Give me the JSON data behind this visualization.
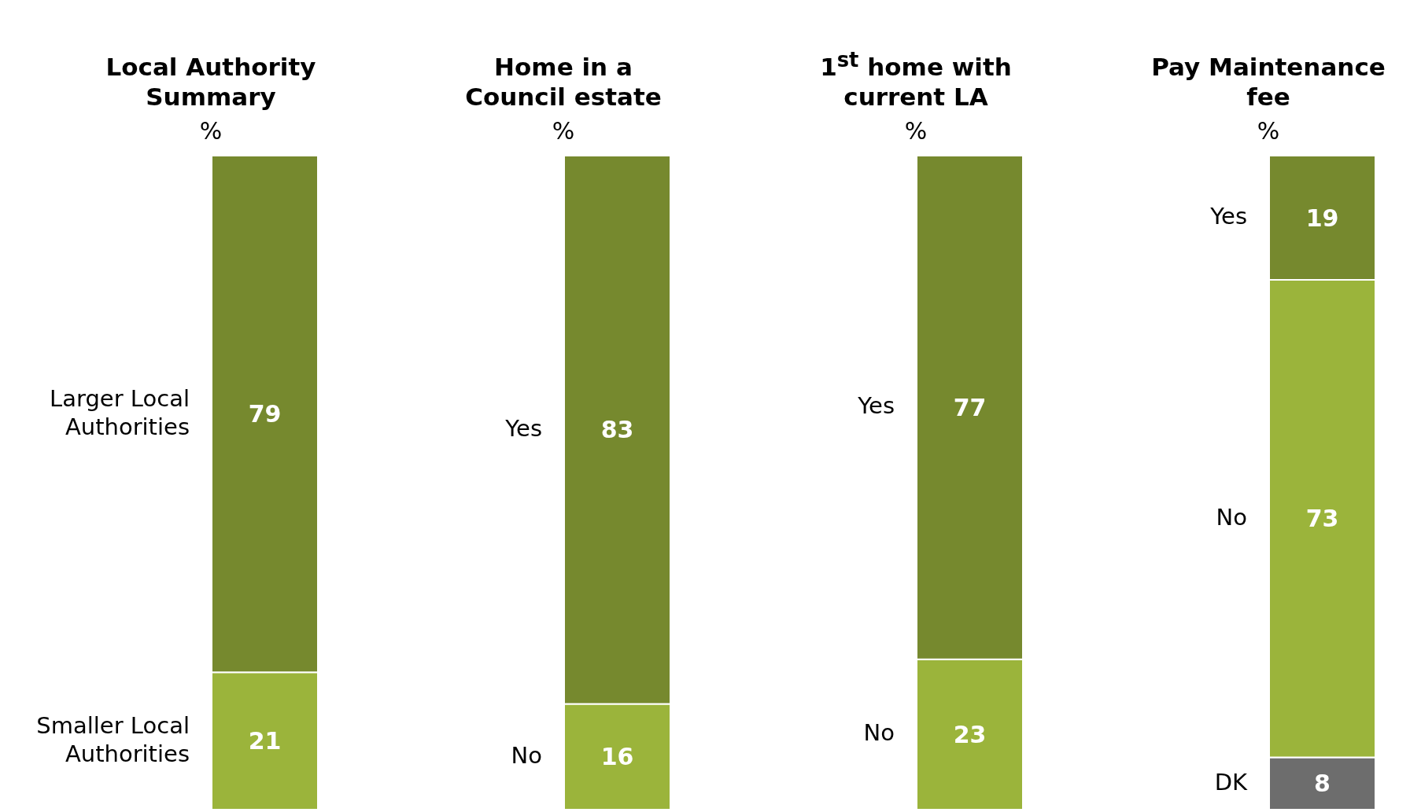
{
  "chart_data": [
    {
      "type": "bar",
      "title": "Local Authority Summary",
      "subtitle": "%",
      "categories": [
        null
      ],
      "stacked": true,
      "data_labels": true,
      "series": [
        {
          "name": "Smaller Local Authorities",
          "color": "#9bb43b",
          "values": [
            21
          ]
        },
        {
          "name": "Larger Local Authorities",
          "color": "#76892e",
          "values": [
            79
          ]
        }
      ]
    },
    {
      "type": "bar",
      "title": "Home in a Council estate",
      "subtitle": "%",
      "categories": [
        null
      ],
      "stacked": true,
      "data_labels": true,
      "series": [
        {
          "name": "No",
          "color": "#9bb43b",
          "values": [
            16
          ]
        },
        {
          "name": "Yes",
          "color": "#76892e",
          "values": [
            83
          ]
        }
      ]
    },
    {
      "type": "bar",
      "title": "1$^{st}$ home with current LA",
      "subtitle": "%",
      "categories": [
        null
      ],
      "stacked": true,
      "data_labels": true,
      "series": [
        {
          "name": "No",
          "color": "#9bb43b",
          "values": [
            23
          ]
        },
        {
          "name": "Yes",
          "color": "#76892e",
          "values": [
            77
          ]
        }
      ]
    },
    {
      "type": "bar",
      "title": "Pay Maintenance fee",
      "subtitle": "%",
      "categories": [
        null
      ],
      "stacked": true,
      "data_labels": true,
      "series": [
        {
          "name": "DK",
          "color": "#6d6d6d",
          "values": [
            8
          ]
        },
        {
          "name": "No",
          "color": "#9bb43b",
          "values": [
            73
          ]
        },
        {
          "name": "Yes",
          "color": "#76892e",
          "values": [
            19
          ]
        }
      ]
    }
  ]
}
